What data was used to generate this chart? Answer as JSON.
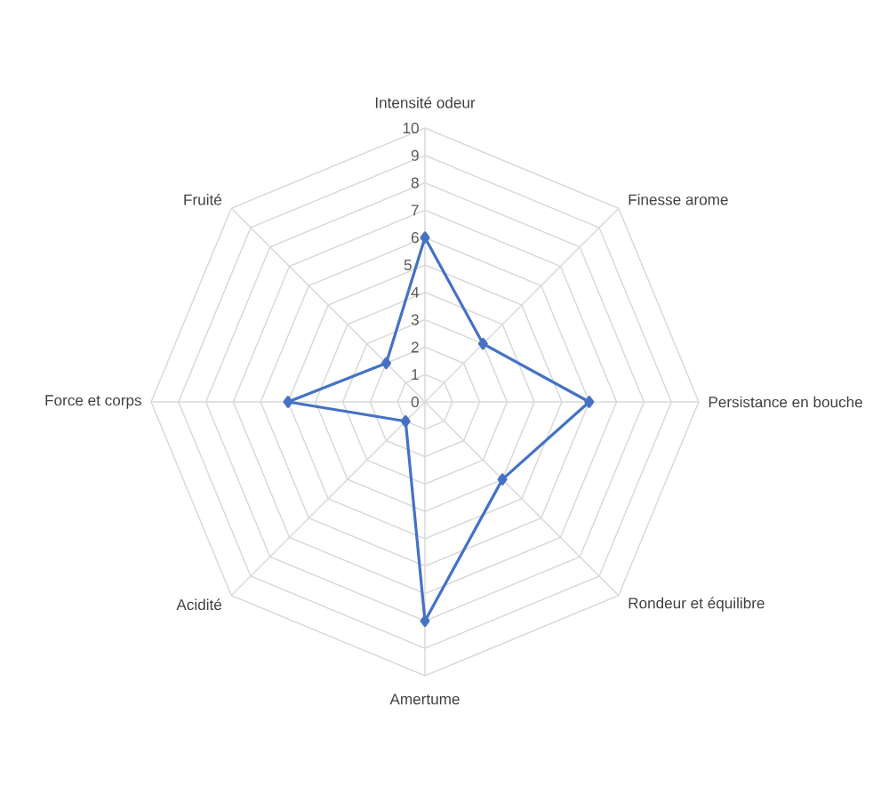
{
  "chart_data": {
    "type": "radar",
    "categories": [
      "Intensité odeur",
      "Finesse arome",
      "Persistance en bouche",
      "Rondeur et équilibre",
      "Amertume",
      "Acidité",
      "Force et corps",
      "Fruité"
    ],
    "series": [
      {
        "color": "#4472c4",
        "values": [
          6,
          3,
          6,
          4,
          8,
          1,
          5,
          2
        ]
      }
    ],
    "ylim": [
      0,
      10
    ],
    "yticks": [
      0,
      1,
      2,
      3,
      4,
      5,
      6,
      7,
      8,
      9,
      10
    ],
    "grid": true,
    "marker": "diamond",
    "line_style": "solid"
  }
}
